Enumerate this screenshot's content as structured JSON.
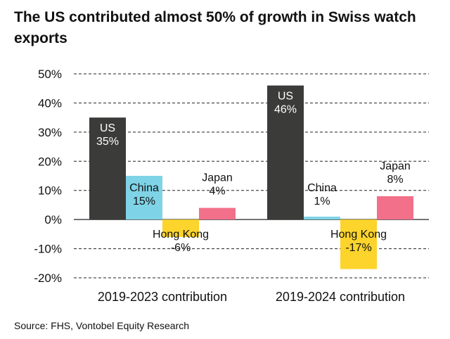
{
  "title": "The US contributed almost 50% of growth in Swiss watch exports",
  "source": "Source: FHS, Vontobel Equity Research",
  "chart_data": {
    "type": "bar",
    "title": "The US contributed almost 50% of growth in Swiss watch exports",
    "categories": [
      "2019-2023 contribution",
      "2019-2024 contribution"
    ],
    "series": [
      {
        "name": "US",
        "color": "#3b3b39",
        "values": [
          35,
          46
        ],
        "labels": [
          "35%",
          "46%"
        ],
        "label_color": "#ffffff"
      },
      {
        "name": "China",
        "color": "#7fd3e6",
        "values": [
          15,
          1
        ],
        "labels": [
          "15%",
          "1%"
        ],
        "label_color": "#111111"
      },
      {
        "name": "Hong Kong",
        "color": "#fcd42b",
        "values": [
          -6,
          -17
        ],
        "labels": [
          "-6%",
          "-17%"
        ],
        "label_color": "#111111"
      },
      {
        "name": "Japan",
        "color": "#f2708a",
        "values": [
          4,
          8
        ],
        "labels": [
          "4%",
          "8%"
        ],
        "label_color": "#111111"
      }
    ],
    "y_ticks": [
      "50%",
      "40%",
      "30%",
      "20%",
      "10%",
      "0%",
      "-10%",
      "-20%"
    ],
    "ylim": [
      -20,
      50
    ],
    "grid": "dashed",
    "legend": "none",
    "xlabel": "",
    "ylabel": ""
  }
}
